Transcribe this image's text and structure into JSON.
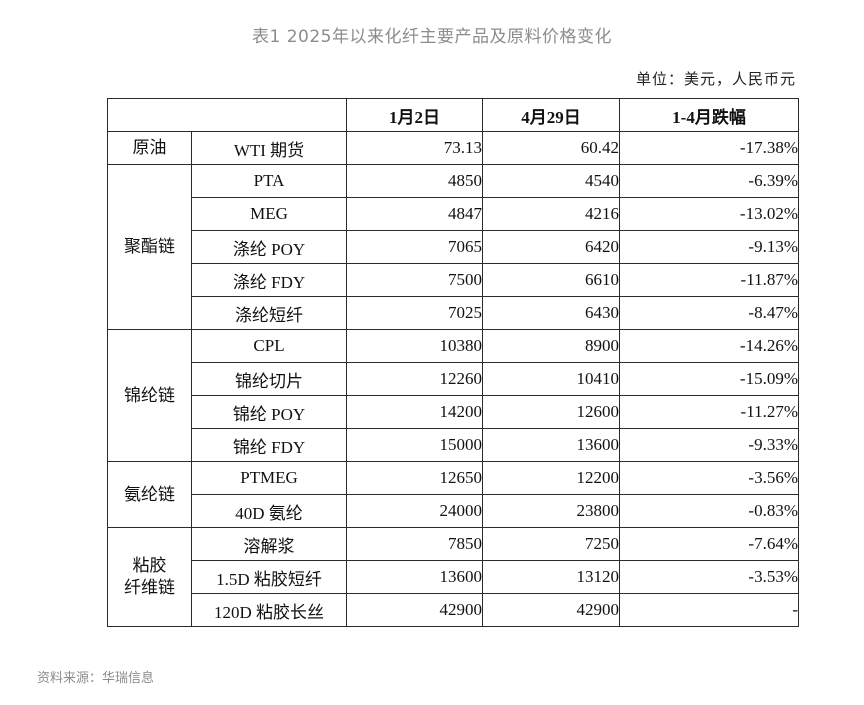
{
  "title": "表1  2025年以来化纤主要产品及原料价格变化",
  "unit": "单位：美元，人民币元",
  "headers": {
    "col1": "1月2日",
    "col2": "4月29日",
    "col3": "1-4月跌幅"
  },
  "groups": {
    "crude": {
      "label": "原油",
      "rows": [
        {
          "product": "WTI 期货",
          "v1": "73.13",
          "v2": "60.42",
          "change": "-17.38%"
        }
      ]
    },
    "polyester": {
      "label": "聚酯链",
      "rows": [
        {
          "product": "PTA",
          "v1": "4850",
          "v2": "4540",
          "change": "-6.39%"
        },
        {
          "product": "MEG",
          "v1": "4847",
          "v2": "4216",
          "change": "-13.02%"
        },
        {
          "product": "涤纶 POY",
          "v1": "7065",
          "v2": "6420",
          "change": "-9.13%"
        },
        {
          "product": "涤纶 FDY",
          "v1": "7500",
          "v2": "6610",
          "change": "-11.87%"
        },
        {
          "product": "涤纶短纤",
          "v1": "7025",
          "v2": "6430",
          "change": "-8.47%"
        }
      ]
    },
    "nylon": {
      "label": "锦纶链",
      "rows": [
        {
          "product": "CPL",
          "v1": "10380",
          "v2": "8900",
          "change": "-14.26%"
        },
        {
          "product": "锦纶切片",
          "v1": "12260",
          "v2": "10410",
          "change": "-15.09%"
        },
        {
          "product": "锦纶 POY",
          "v1": "14200",
          "v2": "12600",
          "change": "-11.27%"
        },
        {
          "product": "锦纶 FDY",
          "v1": "15000",
          "v2": "13600",
          "change": "-9.33%"
        }
      ]
    },
    "spandex": {
      "label": "氨纶链",
      "rows": [
        {
          "product": "PTMEG",
          "v1": "12650",
          "v2": "12200",
          "change": "-3.56%"
        },
        {
          "product": "40D 氨纶",
          "v1": "24000",
          "v2": "23800",
          "change": "-0.83%"
        }
      ]
    },
    "viscose": {
      "label_line1": "粘胶",
      "label_line2": "纤维链",
      "rows": [
        {
          "product": "溶解浆",
          "v1": "7850",
          "v2": "7250",
          "change": "-7.64%"
        },
        {
          "product": "1.5D 粘胶短纤",
          "v1": "13600",
          "v2": "13120",
          "change": "-3.53%"
        },
        {
          "product": "120D 粘胶长丝",
          "v1": "42900",
          "v2": "42900",
          "change": "-"
        }
      ]
    }
  },
  "source": "资料来源：华瑞信息"
}
